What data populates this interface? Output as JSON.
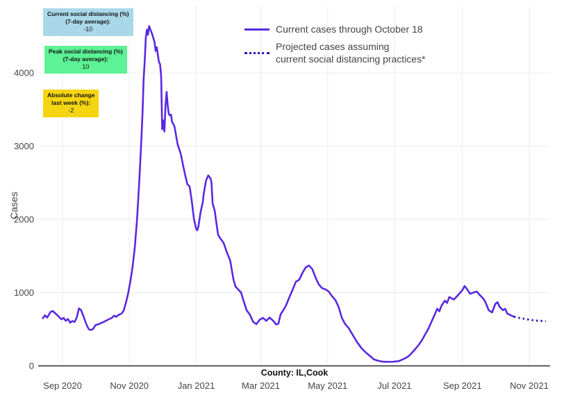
{
  "annotations": [
    {
      "id": "current-social-distancing",
      "lines": [
        "Current social distancing (%)",
        "(7-day average):"
      ],
      "value": "-10",
      "bg": "#a9d9e8"
    },
    {
      "id": "peak-social-distancing",
      "lines": [
        "Peak social distancing (%)",
        "(7-day average):"
      ],
      "value": "10",
      "bg": "#5cf295"
    },
    {
      "id": "absolute-change",
      "lines": [
        "Absolute change",
        "last week (%):"
      ],
      "value": "-2",
      "bg": "#f5d511"
    }
  ],
  "legend": [
    {
      "label": "Current cases through October 18",
      "style": "solid",
      "color": "#5a28e0"
    },
    {
      "lines": [
        "Projected cases assuming",
        "current social distancing practices*"
      ],
      "style": "dotted",
      "color": "#2d16b4"
    }
  ],
  "chart_data": {
    "type": "line",
    "title": "",
    "xlabel": "County: IL,Cook",
    "ylabel": "Cases",
    "grid": true,
    "legend_position": "top-center",
    "ylim": [
      0,
      4920
    ],
    "yticks": [
      0,
      1000,
      2000,
      3000,
      4000
    ],
    "xticks": [
      {
        "date": "2020-09-01",
        "label": "Sep 2020"
      },
      {
        "date": "2020-11-01",
        "label": "Nov 2020"
      },
      {
        "date": "2021-01-01",
        "label": "Jan 2021"
      },
      {
        "date": "2021-03-01",
        "label": "Mar 2021"
      },
      {
        "date": "2021-05-01",
        "label": "May 2021"
      },
      {
        "date": "2021-07-01",
        "label": "Jul 2021"
      },
      {
        "date": "2021-09-01",
        "label": "Sep 2021"
      },
      {
        "date": "2021-11-01",
        "label": "Nov 2021"
      }
    ],
    "colors": {
      "current": "#5a28e0",
      "projected": "#2d16b4",
      "grid": "#ebebeb",
      "zeroline": "#2f2f2f",
      "ticktext": "#444444"
    },
    "series": [
      {
        "name": "Current cases through October 18",
        "style": "solid",
        "color": "#5a28e0",
        "points": [
          [
            "2020-08-14",
            650
          ],
          [
            "2020-08-16",
            690
          ],
          [
            "2020-08-18",
            660
          ],
          [
            "2020-08-21",
            735
          ],
          [
            "2020-08-23",
            750
          ],
          [
            "2020-08-26",
            710
          ],
          [
            "2020-08-29",
            665
          ],
          [
            "2020-08-31",
            635
          ],
          [
            "2020-09-02",
            655
          ],
          [
            "2020-09-04",
            615
          ],
          [
            "2020-09-06",
            640
          ],
          [
            "2020-09-08",
            590
          ],
          [
            "2020-09-10",
            612
          ],
          [
            "2020-09-12",
            600
          ],
          [
            "2020-09-14",
            660
          ],
          [
            "2020-09-16",
            785
          ],
          [
            "2020-09-18",
            760
          ],
          [
            "2020-09-20",
            680
          ],
          [
            "2020-09-23",
            560
          ],
          [
            "2020-09-25",
            500
          ],
          [
            "2020-09-27",
            490
          ],
          [
            "2020-09-29",
            505
          ],
          [
            "2020-10-01",
            555
          ],
          [
            "2020-10-04",
            570
          ],
          [
            "2020-10-07",
            590
          ],
          [
            "2020-10-10",
            610
          ],
          [
            "2020-10-13",
            635
          ],
          [
            "2020-10-16",
            655
          ],
          [
            "2020-10-18",
            685
          ],
          [
            "2020-10-20",
            670
          ],
          [
            "2020-10-22",
            695
          ],
          [
            "2020-10-25",
            715
          ],
          [
            "2020-10-27",
            760
          ],
          [
            "2020-10-29",
            870
          ],
          [
            "2020-10-31",
            995
          ],
          [
            "2020-11-02",
            1160
          ],
          [
            "2020-11-04",
            1360
          ],
          [
            "2020-11-06",
            1620
          ],
          [
            "2020-11-08",
            2000
          ],
          [
            "2020-11-10",
            2500
          ],
          [
            "2020-11-12",
            3100
          ],
          [
            "2020-11-13",
            3450
          ],
          [
            "2020-11-14",
            3900
          ],
          [
            "2020-11-15",
            4150
          ],
          [
            "2020-11-16",
            4480
          ],
          [
            "2020-11-17",
            4590
          ],
          [
            "2020-11-18",
            4520
          ],
          [
            "2020-11-19",
            4640
          ],
          [
            "2020-11-20",
            4600
          ],
          [
            "2020-11-22",
            4520
          ],
          [
            "2020-11-24",
            4420
          ],
          [
            "2020-11-25",
            4300
          ],
          [
            "2020-11-26",
            4350
          ],
          [
            "2020-11-27",
            4250
          ],
          [
            "2020-11-28",
            4150
          ],
          [
            "2020-11-29",
            4120
          ],
          [
            "2020-11-30",
            3960
          ],
          [
            "2020-12-01",
            3230
          ],
          [
            "2020-12-02",
            3350
          ],
          [
            "2020-12-03",
            3200
          ],
          [
            "2020-12-04",
            3560
          ],
          [
            "2020-12-05",
            3740
          ],
          [
            "2020-12-06",
            3560
          ],
          [
            "2020-12-07",
            3440
          ],
          [
            "2020-12-08",
            3420
          ],
          [
            "2020-12-09",
            3430
          ],
          [
            "2020-12-10",
            3330
          ],
          [
            "2020-12-12",
            3280
          ],
          [
            "2020-12-13",
            3200
          ],
          [
            "2020-12-15",
            3030
          ],
          [
            "2020-12-18",
            2890
          ],
          [
            "2020-12-20",
            2740
          ],
          [
            "2020-12-22",
            2600
          ],
          [
            "2020-12-24",
            2480
          ],
          [
            "2020-12-26",
            2450
          ],
          [
            "2020-12-28",
            2250
          ],
          [
            "2020-12-30",
            2000
          ],
          [
            "2021-01-01",
            1870
          ],
          [
            "2021-01-02",
            1850
          ],
          [
            "2021-01-03",
            1900
          ],
          [
            "2021-01-05",
            2100
          ],
          [
            "2021-01-07",
            2230
          ],
          [
            "2021-01-08",
            2360
          ],
          [
            "2021-01-10",
            2530
          ],
          [
            "2021-01-12",
            2600
          ],
          [
            "2021-01-14",
            2560
          ],
          [
            "2021-01-15",
            2500
          ],
          [
            "2021-01-16",
            2220
          ],
          [
            "2021-01-18",
            2110
          ],
          [
            "2021-01-19",
            2000
          ],
          [
            "2021-01-21",
            1790
          ],
          [
            "2021-01-23",
            1740
          ],
          [
            "2021-01-26",
            1680
          ],
          [
            "2021-01-29",
            1550
          ],
          [
            "2021-02-01",
            1440
          ],
          [
            "2021-02-04",
            1180
          ],
          [
            "2021-02-06",
            1080
          ],
          [
            "2021-02-08",
            1050
          ],
          [
            "2021-02-11",
            1000
          ],
          [
            "2021-02-13",
            900
          ],
          [
            "2021-02-16",
            760
          ],
          [
            "2021-02-19",
            700
          ],
          [
            "2021-02-22",
            600
          ],
          [
            "2021-02-25",
            570
          ],
          [
            "2021-02-28",
            630
          ],
          [
            "2021-03-03",
            655
          ],
          [
            "2021-03-06",
            615
          ],
          [
            "2021-03-09",
            660
          ],
          [
            "2021-03-12",
            620
          ],
          [
            "2021-03-15",
            565
          ],
          [
            "2021-03-17",
            575
          ],
          [
            "2021-03-19",
            700
          ],
          [
            "2021-03-21",
            750
          ],
          [
            "2021-03-24",
            825
          ],
          [
            "2021-03-27",
            935
          ],
          [
            "2021-03-30",
            1040
          ],
          [
            "2021-04-02",
            1150
          ],
          [
            "2021-04-05",
            1175
          ],
          [
            "2021-04-08",
            1270
          ],
          [
            "2021-04-11",
            1345
          ],
          [
            "2021-04-14",
            1370
          ],
          [
            "2021-04-17",
            1320
          ],
          [
            "2021-04-20",
            1205
          ],
          [
            "2021-04-23",
            1110
          ],
          [
            "2021-04-26",
            1060
          ],
          [
            "2021-04-29",
            1045
          ],
          [
            "2021-05-02",
            1015
          ],
          [
            "2021-05-05",
            950
          ],
          [
            "2021-05-08",
            900
          ],
          [
            "2021-05-11",
            805
          ],
          [
            "2021-05-14",
            650
          ],
          [
            "2021-05-17",
            570
          ],
          [
            "2021-05-20",
            520
          ],
          [
            "2021-05-24",
            420
          ],
          [
            "2021-05-28",
            320
          ],
          [
            "2021-06-01",
            240
          ],
          [
            "2021-06-05",
            180
          ],
          [
            "2021-06-09",
            130
          ],
          [
            "2021-06-12",
            90
          ],
          [
            "2021-06-16",
            70
          ],
          [
            "2021-06-20",
            58
          ],
          [
            "2021-06-25",
            55
          ],
          [
            "2021-06-30",
            57
          ],
          [
            "2021-07-05",
            65
          ],
          [
            "2021-07-08",
            85
          ],
          [
            "2021-07-11",
            105
          ],
          [
            "2021-07-14",
            135
          ],
          [
            "2021-07-17",
            180
          ],
          [
            "2021-07-20",
            230
          ],
          [
            "2021-07-23",
            285
          ],
          [
            "2021-07-26",
            350
          ],
          [
            "2021-07-29",
            430
          ],
          [
            "2021-08-01",
            510
          ],
          [
            "2021-08-04",
            610
          ],
          [
            "2021-08-07",
            710
          ],
          [
            "2021-08-09",
            780
          ],
          [
            "2021-08-11",
            745
          ],
          [
            "2021-08-13",
            825
          ],
          [
            "2021-08-16",
            890
          ],
          [
            "2021-08-18",
            860
          ],
          [
            "2021-08-20",
            940
          ],
          [
            "2021-08-24",
            905
          ],
          [
            "2021-08-27",
            950
          ],
          [
            "2021-08-30",
            1000
          ],
          [
            "2021-09-01",
            1035
          ],
          [
            "2021-09-03",
            1090
          ],
          [
            "2021-09-05",
            1050
          ],
          [
            "2021-09-08",
            985
          ],
          [
            "2021-09-11",
            1000
          ],
          [
            "2021-09-14",
            1015
          ],
          [
            "2021-09-17",
            965
          ],
          [
            "2021-09-20",
            920
          ],
          [
            "2021-09-22",
            870
          ],
          [
            "2021-09-25",
            760
          ],
          [
            "2021-09-28",
            730
          ],
          [
            "2021-10-01",
            845
          ],
          [
            "2021-10-03",
            870
          ],
          [
            "2021-10-05",
            805
          ],
          [
            "2021-10-08",
            760
          ],
          [
            "2021-10-10",
            778
          ],
          [
            "2021-10-12",
            712
          ],
          [
            "2021-10-14",
            700
          ],
          [
            "2021-10-16",
            682
          ],
          [
            "2021-10-18",
            672
          ]
        ]
      },
      {
        "name": "Projected cases assuming current social distancing practices*",
        "style": "dotted",
        "color": "#2d16b4",
        "points": [
          [
            "2021-10-18",
            672
          ],
          [
            "2021-10-21",
            660
          ],
          [
            "2021-10-25",
            648
          ],
          [
            "2021-10-29",
            638
          ],
          [
            "2021-11-02",
            628
          ],
          [
            "2021-11-06",
            620
          ],
          [
            "2021-11-10",
            615
          ],
          [
            "2021-11-14",
            612
          ],
          [
            "2021-11-16",
            610
          ]
        ]
      }
    ]
  }
}
